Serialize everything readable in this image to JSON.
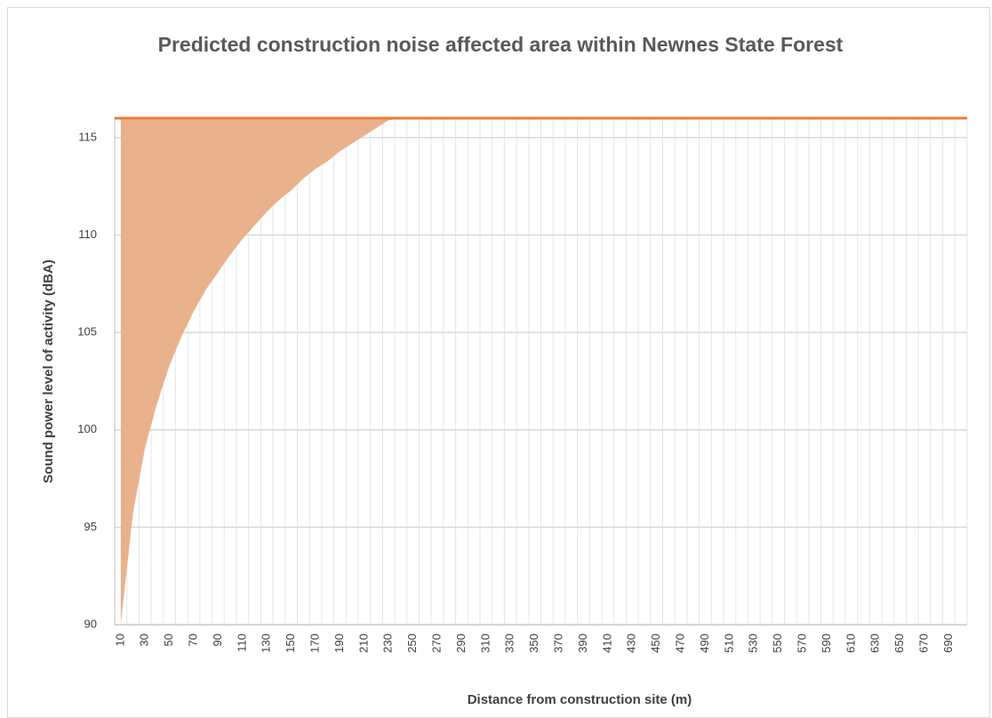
{
  "chart_data": {
    "type": "area",
    "title": "Predicted construction noise affected area within Newnes State Forest",
    "x_label": "Distance from construction site (m)",
    "y_label": "Sound power level of activity (dBA)",
    "categories": [
      10,
      null,
      30,
      null,
      50,
      null,
      70,
      null,
      90,
      null,
      110,
      null,
      130,
      null,
      150,
      null,
      170,
      null,
      190,
      null,
      210,
      null,
      230,
      null,
      250,
      null,
      270,
      null,
      290,
      null,
      310,
      null,
      330,
      null,
      350,
      null,
      370,
      null,
      390,
      null,
      410,
      null,
      430,
      null,
      450,
      null,
      470,
      null,
      490,
      null,
      510,
      null,
      530,
      null,
      550,
      null,
      570,
      null,
      590,
      null,
      610,
      null,
      630,
      null,
      650,
      null,
      670,
      null,
      690,
      null
    ],
    "series": [
      {
        "color": "#eab28c",
        "fill": "to_reference",
        "values": [
          90,
          95.7,
          99.1,
          101.4,
          103.3,
          104.8,
          106.1,
          107.2,
          108.1,
          109.0,
          109.8,
          110.5,
          111.2,
          111.8,
          112.3,
          112.9,
          113.4,
          113.8,
          114.3,
          114.7,
          115.1,
          115.5,
          115.9,
          116,
          116,
          116,
          116,
          116,
          116,
          116,
          116,
          116,
          116,
          116,
          116,
          116,
          116,
          116,
          116,
          116,
          116,
          116,
          116,
          116,
          116,
          116,
          116,
          116,
          116,
          116,
          116,
          116,
          116,
          116,
          116,
          116,
          116,
          116,
          116,
          116,
          116,
          116,
          116,
          116,
          116,
          116,
          116,
          116,
          116,
          116
        ]
      }
    ],
    "reference_line": {
      "value": 116,
      "color": "#ed7d31"
    },
    "ylim": [
      90,
      116
    ],
    "yticks": [
      90,
      95,
      100,
      105,
      110,
      115
    ],
    "grid": true
  }
}
